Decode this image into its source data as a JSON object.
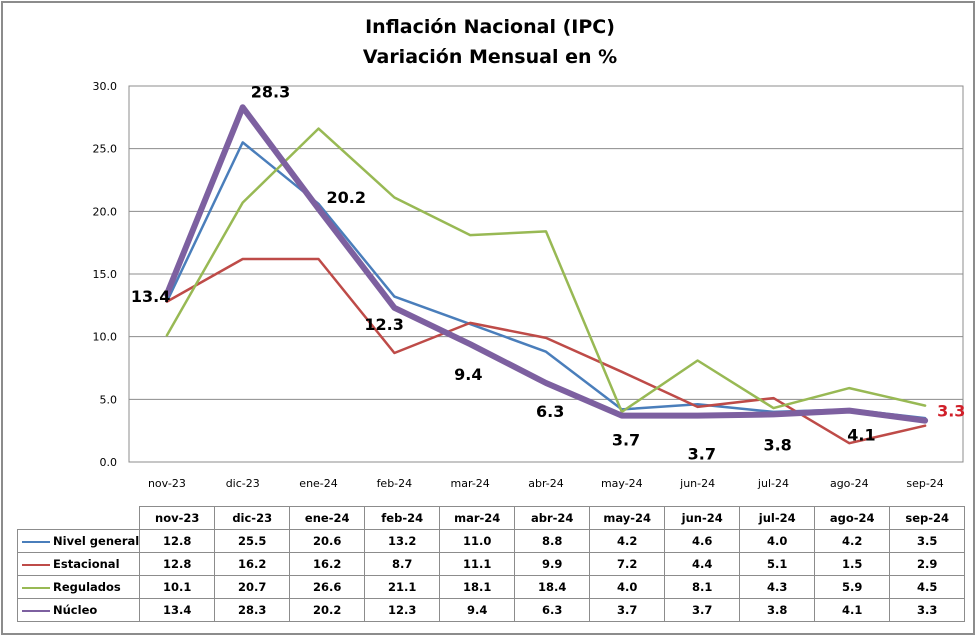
{
  "chart_data": {
    "type": "line",
    "title": "Inflación Nacional (IPC)",
    "subtitle": "Variación Mensual en %",
    "xlabel": "",
    "ylabel": "",
    "ylim": [
      0,
      30
    ],
    "yticks": [
      "0.0",
      "5.0",
      "10.0",
      "15.0",
      "20.0",
      "25.0",
      "30.0"
    ],
    "ytick_values": [
      0,
      5,
      10,
      15,
      20,
      25,
      30
    ],
    "grid": true,
    "legend": "data-table-bottom",
    "categories": [
      "nov-23",
      "dic-23",
      "ene-24",
      "feb-24",
      "mar-24",
      "abr-24",
      "may-24",
      "jun-24",
      "jul-24",
      "ago-24",
      "sep-24"
    ],
    "series": [
      {
        "name": "Nivel general",
        "color": "#4a7ebb",
        "emphasis": false,
        "values": [
          12.8,
          25.5,
          20.6,
          13.2,
          11.0,
          8.8,
          4.2,
          4.6,
          4.0,
          4.2,
          3.5
        ],
        "labels": [
          "12.8",
          "25.5",
          "20.6",
          "13.2",
          "11.0",
          "8.8",
          "4.2",
          "4.6",
          "4.0",
          "4.2",
          "3.5"
        ]
      },
      {
        "name": "Estacional",
        "color": "#be4b48",
        "emphasis": false,
        "values": [
          12.8,
          16.2,
          16.2,
          8.7,
          11.1,
          9.9,
          7.2,
          4.4,
          5.1,
          1.5,
          2.9
        ],
        "labels": [
          "12.8",
          "16.2",
          "16.2",
          "8.7",
          "11.1",
          "9.9",
          "7.2",
          "4.4",
          "5.1",
          "1.5",
          "2.9"
        ]
      },
      {
        "name": "Regulados",
        "color": "#98b954",
        "emphasis": false,
        "values": [
          10.1,
          20.7,
          26.6,
          21.1,
          18.1,
          18.4,
          4.0,
          8.1,
          4.3,
          5.9,
          4.5
        ],
        "labels": [
          "10.1",
          "20.7",
          "26.6",
          "21.1",
          "18.1",
          "18.4",
          "4.0",
          "8.1",
          "4.3",
          "5.9",
          "4.5"
        ]
      },
      {
        "name": "Núcleo",
        "color": "#7d60a0",
        "emphasis": true,
        "values": [
          13.4,
          28.3,
          20.2,
          12.3,
          9.4,
          6.3,
          3.7,
          3.7,
          3.8,
          4.1,
          3.3
        ],
        "labels": [
          "13.4",
          "28.3",
          "20.2",
          "12.3",
          "9.4",
          "6.3",
          "3.7",
          "3.7",
          "3.8",
          "4.1",
          "3.3"
        ]
      }
    ],
    "data_labels": {
      "series": "Núcleo",
      "values": [
        "13.4",
        "28.3",
        "20.2",
        "12.3",
        "9.4",
        "6.3",
        "3.7",
        "3.7",
        "3.8",
        "4.1",
        "3.3"
      ],
      "highlight_last_color": "#d0202a"
    }
  }
}
